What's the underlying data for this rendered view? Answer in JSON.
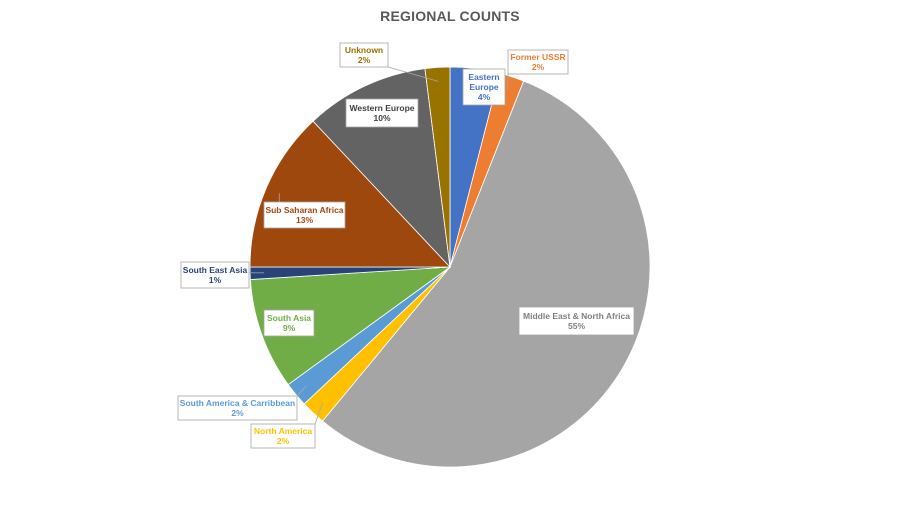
{
  "chart_data": {
    "type": "pie",
    "title": "REGIONAL COUNTS",
    "slices": [
      {
        "label": "Eastern Europe",
        "value": 4,
        "value_label": "4%",
        "color": "#4472C4"
      },
      {
        "label": "Former USSR",
        "value": 2,
        "value_label": "2%",
        "color": "#ED7D31"
      },
      {
        "label": "Middle East & North Africa",
        "value": 55,
        "value_label": "55%",
        "color": "#A5A5A5"
      },
      {
        "label": "North America",
        "value": 2,
        "value_label": "2%",
        "color": "#FFC000"
      },
      {
        "label": "South America & Carribbean",
        "value": 2,
        "value_label": "2%",
        "color": "#5B9BD5"
      },
      {
        "label": "South Asia",
        "value": 9,
        "value_label": "9%",
        "color": "#70AD47"
      },
      {
        "label": "South East Asia",
        "value": 1,
        "value_label": "1%",
        "color": "#264478"
      },
      {
        "label": "Sub Saharan Africa",
        "value": 13,
        "value_label": "13%",
        "color": "#9E480E"
      },
      {
        "label": "Western Europe",
        "value": 10,
        "value_label": "10%",
        "color": "#636363"
      },
      {
        "label": "Unknown",
        "value": 2,
        "value_label": "2%",
        "color": "#997300"
      }
    ],
    "legend": "none",
    "labels": "callouts"
  }
}
